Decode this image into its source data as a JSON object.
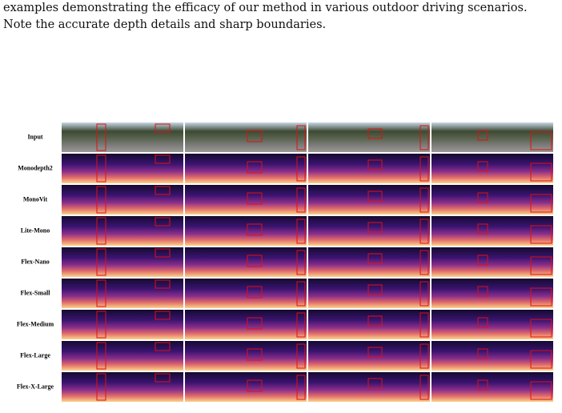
{
  "caption": [
    "examples demonstrating the efficacy of our method in various outdoor driving scenarios.",
    "Note the accurate depth details and sharp boundaries."
  ],
  "figure": {
    "row_labels": [
      "Input",
      "Monodepth2",
      "MonoVit",
      "Lite-Mono",
      "Flex-Nano",
      "Flex-Small",
      "Flex-Medium",
      "Flex-Large",
      "Flex-X-Large"
    ]
  }
}
